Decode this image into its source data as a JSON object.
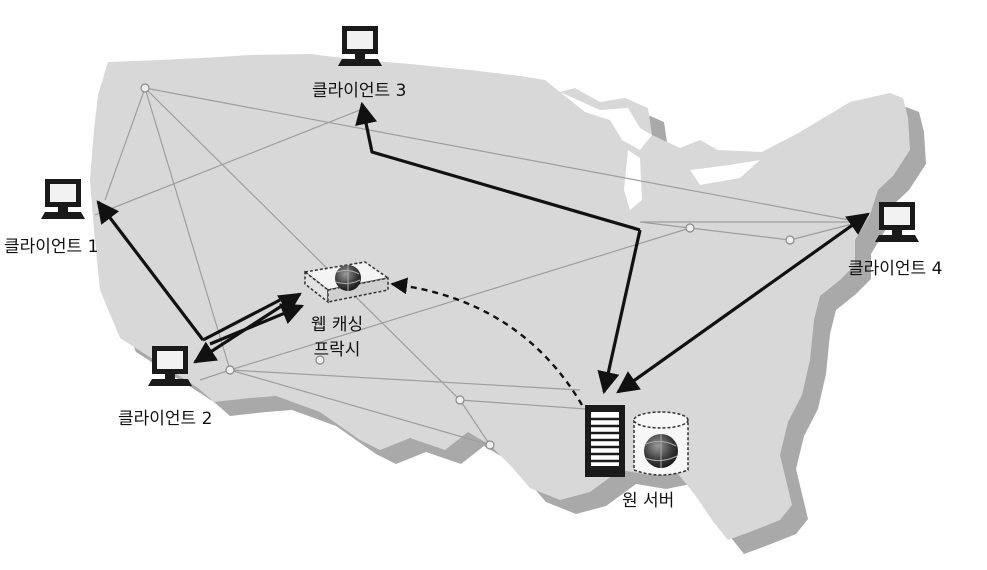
{
  "diagram": {
    "clients": [
      {
        "label": "클라이언트 1"
      },
      {
        "label": "클라이언트 2"
      },
      {
        "label": "클라이언트 3"
      },
      {
        "label": "클라이언트 4"
      }
    ],
    "proxy": {
      "label_line1": "웹 캐싱",
      "label_line2": "프락시"
    },
    "origin_server": {
      "label": "원 서버"
    },
    "colors": {
      "map_fill": "#d8d8d8",
      "map_shadow": "#a9a9a9",
      "network_line": "#b0b0b0",
      "arrow": "#111111"
    },
    "icons": [
      "computer-monitor-icon",
      "server-tower-icon",
      "database-cylinder-icon",
      "globe-icon",
      "cache-proxy-box-icon"
    ]
  }
}
